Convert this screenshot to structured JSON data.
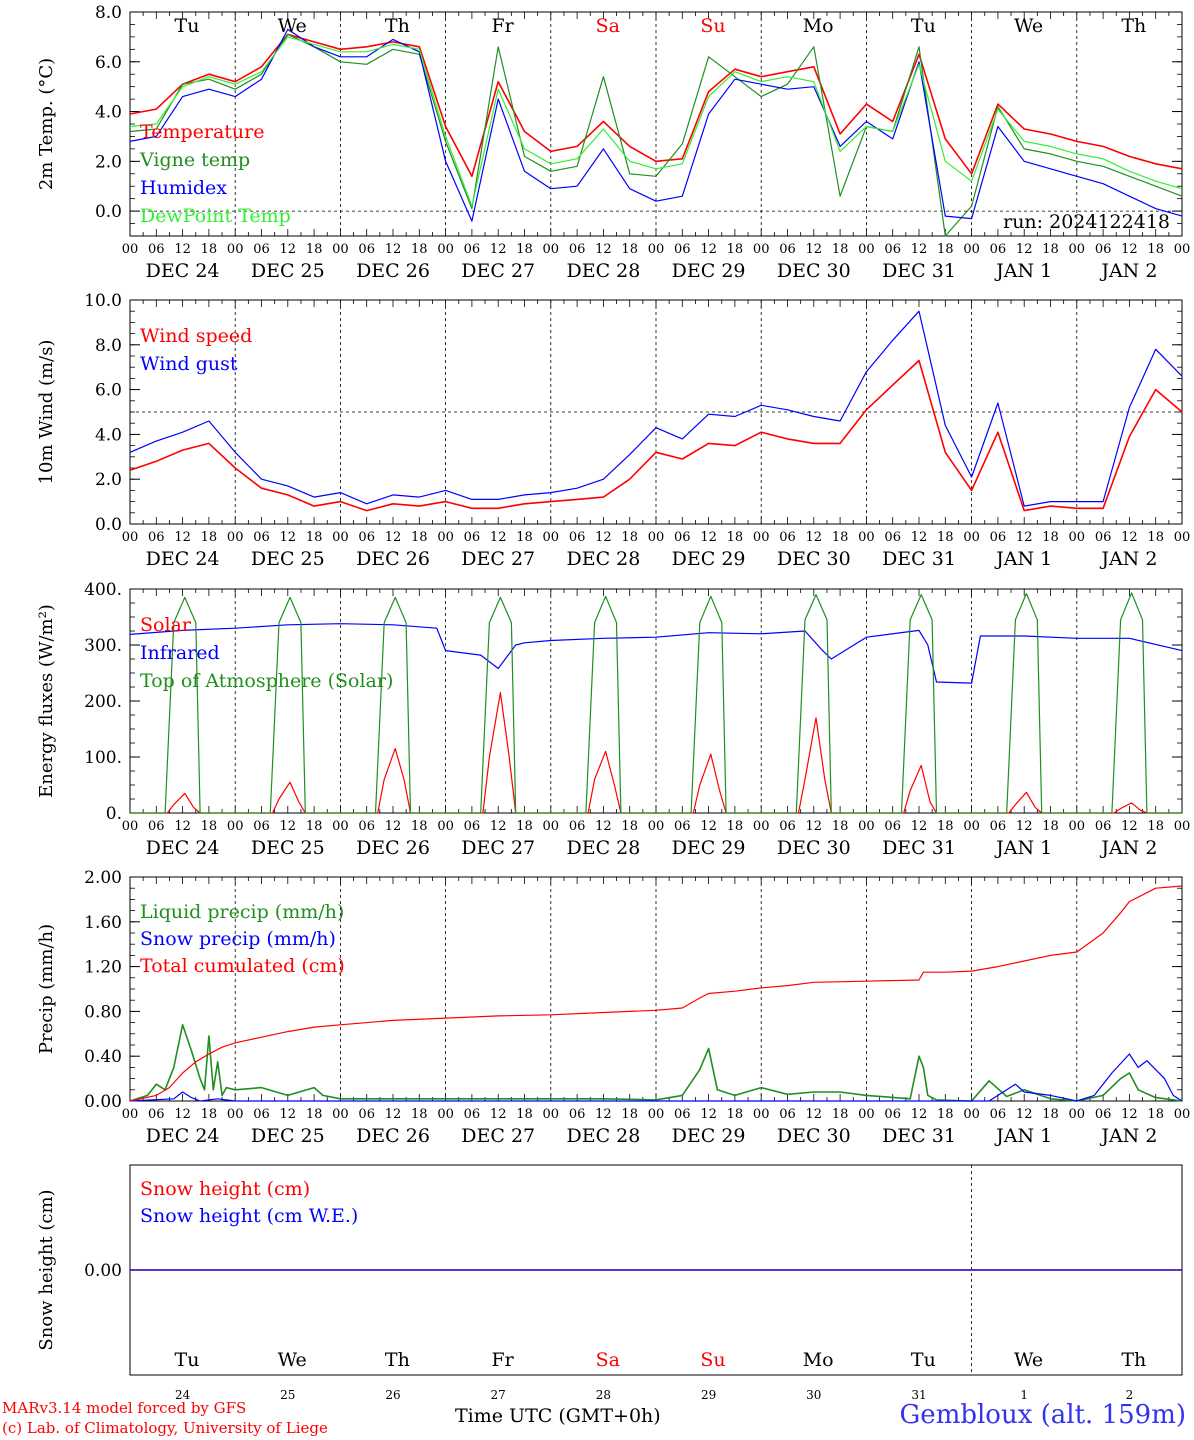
{
  "colors": {
    "red": "#ff0000",
    "green": "#1f8f1f",
    "blue": "#0000ff",
    "lightgreen": "#33ee33",
    "axis": "#000000",
    "location": "#3333ee"
  },
  "days": [
    "Tu",
    "We",
    "Th",
    "Fr",
    "Sa",
    "Su",
    "Mo",
    "Tu",
    "We",
    "Th"
  ],
  "day_colors": [
    "#000000",
    "#000000",
    "#000000",
    "#000000",
    "#ff0000",
    "#ff0000",
    "#000000",
    "#000000",
    "#000000",
    "#000000"
  ],
  "hour_ticks": [
    "00",
    "06",
    "12",
    "18"
  ],
  "end_tick": "00",
  "dates": [
    "DEC 24",
    "DEC 25",
    "DEC 26",
    "DEC 27",
    "DEC 28",
    "DEC 29",
    "DEC 30",
    "DEC 31",
    "JAN  1",
    "JAN  2"
  ],
  "day_numbers": [
    "24",
    "25",
    "26",
    "27",
    "28",
    "29",
    "30",
    "31",
    "1",
    "2"
  ],
  "footer": {
    "model": "MARv3.14 model forced by GFS",
    "copyright": "(c) Lab. of Climatology, University of Liege",
    "xlabel": "Time UTC (GMT+0h)",
    "location": "Gembloux (alt. 159m)"
  },
  "chart_data": [
    {
      "type": "line",
      "ylabel": "2m Temp. (°C)",
      "ylim": [
        -1,
        8
      ],
      "yticks": [
        "8.0",
        "6.0",
        "4.0",
        "2.0",
        "0.0"
      ],
      "ytick_values": [
        8,
        6,
        4,
        2,
        0
      ],
      "ref_line": 0,
      "annotation": "run: 2024122418",
      "x_unit": "hours since DEC 24 00 UTC",
      "x": [
        0,
        6,
        12,
        18,
        24,
        30,
        36,
        42,
        48,
        54,
        60,
        66,
        72,
        78,
        84,
        90,
        96,
        102,
        108,
        114,
        120,
        126,
        132,
        138,
        144,
        150,
        156,
        162,
        168,
        174,
        180,
        186,
        192,
        198,
        204,
        210,
        216,
        222,
        228,
        234,
        240
      ],
      "series": [
        {
          "name": "Temperature",
          "color": "#ff0000",
          "values": [
            3.9,
            4.1,
            5.1,
            5.5,
            5.2,
            5.8,
            7.1,
            6.8,
            6.5,
            6.6,
            6.8,
            6.6,
            3.4,
            1.4,
            5.2,
            3.2,
            2.4,
            2.6,
            3.6,
            2.6,
            2.0,
            2.1,
            4.8,
            5.7,
            5.4,
            5.6,
            5.8,
            3.1,
            4.3,
            3.6,
            6.3,
            2.9,
            1.5,
            4.3,
            3.3,
            3.1,
            2.8,
            2.6,
            2.2,
            1.9,
            1.7
          ]
        },
        {
          "name": "Vigne temp",
          "color": "#1f8f1f",
          "values": [
            3.2,
            3.3,
            5.1,
            5.3,
            4.9,
            5.5,
            7.1,
            6.6,
            6.0,
            5.9,
            6.5,
            6.3,
            2.8,
            0.1,
            6.6,
            2.2,
            1.6,
            1.8,
            5.4,
            1.5,
            1.4,
            2.7,
            6.2,
            5.4,
            4.6,
            5.1,
            6.6,
            0.6,
            3.4,
            3.2,
            6.6,
            -1.0,
            0.2,
            4.2,
            2.5,
            2.3,
            2.0,
            1.8,
            1.4,
            1.0,
            0.6
          ]
        },
        {
          "name": "Humidex",
          "color": "#0000ff",
          "values": [
            2.8,
            3.0,
            4.6,
            4.9,
            4.6,
            5.3,
            7.3,
            6.6,
            6.2,
            6.2,
            6.9,
            6.4,
            2.0,
            -0.4,
            4.5,
            1.6,
            0.9,
            1.0,
            2.5,
            0.9,
            0.4,
            0.6,
            3.9,
            5.3,
            5.1,
            4.9,
            5.0,
            2.6,
            3.6,
            2.9,
            6.0,
            -0.2,
            -0.3,
            3.4,
            2.0,
            1.7,
            1.4,
            1.1,
            0.6,
            0.1,
            -0.2
          ]
        },
        {
          "name": "DewPoint Temp",
          "color": "#33ee33",
          "values": [
            3.4,
            3.5,
            5.0,
            5.4,
            5.1,
            5.6,
            7.0,
            6.7,
            6.4,
            6.4,
            6.7,
            6.5,
            3.0,
            0.2,
            4.9,
            2.5,
            1.9,
            2.1,
            3.3,
            2.0,
            1.7,
            1.9,
            4.6,
            5.6,
            5.2,
            5.4,
            5.2,
            2.4,
            3.4,
            3.2,
            5.9,
            2.0,
            1.2,
            4.1,
            2.8,
            2.6,
            2.3,
            2.1,
            1.6,
            1.2,
            0.9
          ]
        }
      ]
    },
    {
      "type": "line",
      "ylabel": "10m Wind (m/s)",
      "ylim": [
        0,
        10
      ],
      "yticks": [
        "10.0",
        "8.0",
        "6.0",
        "4.0",
        "2.0",
        "0.0"
      ],
      "ytick_values": [
        10,
        8,
        6,
        4,
        2,
        0
      ],
      "ref_line": 5,
      "x_unit": "hours since DEC 24 00 UTC",
      "x": [
        0,
        6,
        12,
        18,
        24,
        30,
        36,
        42,
        48,
        54,
        60,
        66,
        72,
        78,
        84,
        90,
        96,
        102,
        108,
        114,
        120,
        126,
        132,
        138,
        144,
        150,
        156,
        162,
        168,
        174,
        180,
        186,
        192,
        198,
        204,
        210,
        216,
        222,
        228,
        234,
        240
      ],
      "series": [
        {
          "name": "Wind speed",
          "color": "#ff0000",
          "values": [
            2.4,
            2.8,
            3.3,
            3.6,
            2.5,
            1.6,
            1.3,
            0.8,
            1.0,
            0.6,
            0.9,
            0.8,
            1.0,
            0.7,
            0.7,
            0.9,
            1.0,
            1.1,
            1.2,
            2.0,
            3.2,
            2.9,
            3.6,
            3.5,
            4.1,
            3.8,
            3.6,
            3.6,
            5.1,
            6.2,
            7.3,
            3.2,
            1.5,
            4.1,
            0.6,
            0.8,
            0.7,
            0.7,
            3.9,
            6.0,
            5.0
          ]
        },
        {
          "name": "Wind gust",
          "color": "#0000ff",
          "values": [
            3.2,
            3.7,
            4.1,
            4.6,
            3.2,
            2.0,
            1.7,
            1.2,
            1.4,
            0.9,
            1.3,
            1.2,
            1.5,
            1.1,
            1.1,
            1.3,
            1.4,
            1.6,
            2.0,
            3.1,
            4.3,
            3.8,
            4.9,
            4.8,
            5.3,
            5.1,
            4.8,
            4.6,
            6.8,
            8.2,
            9.5,
            4.4,
            2.1,
            5.4,
            0.8,
            1.0,
            1.0,
            1.0,
            5.2,
            7.8,
            6.6
          ]
        }
      ]
    },
    {
      "type": "line",
      "ylabel": "Energy fluxes (W/m²)",
      "ylim": [
        0,
        400
      ],
      "yticks": [
        "400.",
        "300.",
        "200.",
        "100.",
        "0."
      ],
      "ytick_values": [
        400,
        300,
        200,
        100,
        0
      ],
      "x_unit": "hours since DEC 24 00 UTC",
      "series": [
        {
          "name": "Solar",
          "color": "#ff0000",
          "x": [
            0,
            8.5,
            10,
            12.5,
            14.5,
            16,
            24,
            32.5,
            34,
            36.5,
            38.5,
            40,
            48,
            56.5,
            58,
            60.5,
            62.5,
            64,
            72,
            80.5,
            82,
            84.5,
            86.5,
            88,
            96,
            104.5,
            106,
            108.5,
            110.5,
            112,
            120,
            128.5,
            130,
            132.5,
            134.5,
            136,
            144,
            152.5,
            154,
            156.5,
            158.5,
            160,
            168,
            176.5,
            178,
            180.5,
            182.5,
            184,
            192,
            200.5,
            202,
            204.5,
            206.5,
            208,
            216,
            224.5,
            226,
            228.5,
            230.5,
            232,
            240
          ],
          "values": [
            0,
            0,
            15,
            35,
            10,
            0,
            0,
            0,
            25,
            55,
            20,
            0,
            0,
            0,
            60,
            115,
            60,
            0,
            0,
            0,
            100,
            215,
            100,
            0,
            0,
            0,
            60,
            110,
            50,
            0,
            0,
            0,
            50,
            105,
            40,
            0,
            0,
            0,
            60,
            170,
            60,
            0,
            0,
            0,
            40,
            85,
            20,
            0,
            0,
            0,
            15,
            37,
            10,
            0,
            0,
            0,
            8,
            18,
            5,
            0,
            0
          ]
        },
        {
          "name": "Infrared",
          "color": "#0000ff",
          "x": [
            0,
            12,
            24,
            36,
            48,
            60,
            70,
            72,
            80,
            84,
            88,
            90,
            96,
            108,
            120,
            132,
            144,
            154,
            158,
            160,
            168,
            180,
            182,
            184,
            192,
            194,
            204,
            216,
            228,
            240
          ],
          "values": [
            319,
            326,
            330,
            336,
            338,
            336,
            330,
            290,
            282,
            258,
            300,
            304,
            308,
            312,
            314,
            322,
            320,
            325,
            290,
            275,
            314,
            326,
            300,
            234,
            232,
            316,
            316,
            312,
            312,
            290
          ]
        },
        {
          "name": "Top of Atmosphere (Solar)",
          "color": "#1f8f1f",
          "x": [
            0,
            8,
            10,
            12.5,
            15,
            16,
            24,
            32,
            34,
            36.5,
            39,
            40,
            48,
            56,
            58,
            60.5,
            63,
            64,
            72,
            80,
            82,
            84.5,
            87,
            88,
            96,
            104,
            106,
            108.5,
            111,
            112,
            120,
            128,
            130,
            132.5,
            135,
            136,
            144,
            152,
            154,
            156.5,
            159,
            160,
            168,
            176,
            178,
            180.5,
            183,
            184,
            192,
            200,
            202,
            204.5,
            207,
            208,
            216,
            224,
            226,
            228.5,
            231,
            232,
            240
          ],
          "values": [
            0,
            0,
            340,
            385,
            340,
            0,
            0,
            0,
            340,
            385,
            340,
            0,
            0,
            0,
            340,
            385,
            340,
            0,
            0,
            0,
            340,
            385,
            340,
            0,
            0,
            0,
            340,
            387,
            340,
            0,
            0,
            0,
            340,
            387,
            340,
            0,
            0,
            0,
            345,
            390,
            345,
            0,
            0,
            0,
            345,
            390,
            345,
            0,
            0,
            0,
            345,
            392,
            345,
            0,
            0,
            0,
            345,
            393,
            345,
            0,
            0
          ]
        }
      ]
    },
    {
      "type": "line",
      "ylabel": "Precip (mm/h)",
      "ylim": [
        0,
        2
      ],
      "yticks": [
        "2.00",
        "1.60",
        "1.20",
        "0.80",
        "0.40",
        "0.00"
      ],
      "ytick_values": [
        2.0,
        1.6,
        1.2,
        0.8,
        0.4,
        0
      ],
      "x_unit": "hours since DEC 24 00 UTC",
      "series": [
        {
          "name": "Liquid precip (mm/h)",
          "color": "#1f8f1f",
          "x": [
            0,
            4,
            6,
            8,
            10,
            12,
            14,
            16,
            17,
            18,
            19,
            20,
            21,
            22,
            24,
            30,
            36,
            42,
            44,
            48,
            60,
            72,
            96,
            108,
            120,
            126,
            130,
            132,
            134,
            138,
            144,
            150,
            156,
            162,
            168,
            178,
            180,
            181,
            182,
            184,
            192,
            196,
            200,
            204,
            210,
            216,
            222,
            226,
            228,
            230,
            234,
            240
          ],
          "values": [
            0,
            0.05,
            0.15,
            0.1,
            0.3,
            0.68,
            0.45,
            0.2,
            0.1,
            0.58,
            0.1,
            0.35,
            0.05,
            0.12,
            0.1,
            0.12,
            0.05,
            0.12,
            0.05,
            0.02,
            0.02,
            0.02,
            0.02,
            0.02,
            0.01,
            0.05,
            0.28,
            0.47,
            0.1,
            0.05,
            0.12,
            0.06,
            0.08,
            0.08,
            0.05,
            0.02,
            0.4,
            0.3,
            0.05,
            0.01,
            0.0,
            0.18,
            0.04,
            0.1,
            0.02,
            0.0,
            0.05,
            0.2,
            0.25,
            0.1,
            0.03,
            0.0
          ]
        },
        {
          "name": "Snow precip (mm/h)",
          "color": "#0000ff",
          "x": [
            0,
            10,
            12,
            14,
            16,
            20,
            24,
            192,
            196,
            198,
            202,
            204,
            210,
            216,
            220,
            224,
            228,
            230,
            232,
            236,
            238,
            240
          ],
          "values": [
            0,
            0.02,
            0.08,
            0.03,
            0.0,
            0.02,
            0.0,
            0.0,
            0.0,
            0.05,
            0.15,
            0.08,
            0.05,
            0.0,
            0.05,
            0.25,
            0.42,
            0.3,
            0.36,
            0.2,
            0.05,
            0.0
          ]
        },
        {
          "name": "Total cumulated (cm)",
          "color": "#ff0000",
          "x": [
            0,
            6,
            9,
            12,
            15,
            18,
            21,
            24,
            30,
            36,
            42,
            48,
            60,
            72,
            84,
            96,
            108,
            120,
            126,
            130,
            132,
            138,
            144,
            150,
            156,
            168,
            180,
            181,
            186,
            192,
            198,
            204,
            210,
            216,
            222,
            226,
            228,
            234,
            240
          ],
          "values": [
            0,
            0.05,
            0.12,
            0.25,
            0.35,
            0.42,
            0.48,
            0.52,
            0.57,
            0.62,
            0.66,
            0.68,
            0.72,
            0.74,
            0.76,
            0.77,
            0.79,
            0.81,
            0.83,
            0.92,
            0.96,
            0.98,
            1.01,
            1.03,
            1.06,
            1.07,
            1.08,
            1.15,
            1.15,
            1.16,
            1.2,
            1.25,
            1.3,
            1.33,
            1.5,
            1.68,
            1.78,
            1.9,
            1.92
          ]
        }
      ]
    },
    {
      "type": "line",
      "ylabel": "Snow height (cm)",
      "ylim": [
        -1,
        1
      ],
      "yticks": [
        "0.00"
      ],
      "ytick_values": [
        0
      ],
      "x_unit": "hours since DEC 24 00 UTC",
      "series": [
        {
          "name": "Snow height (cm)",
          "color": "#ff0000",
          "x": [
            0,
            240
          ],
          "values": [
            0,
            0
          ]
        },
        {
          "name": "Snow height (cm W.E.)",
          "color": "#0000ff",
          "x": [
            0,
            240
          ],
          "values": [
            0,
            0
          ]
        }
      ]
    }
  ]
}
